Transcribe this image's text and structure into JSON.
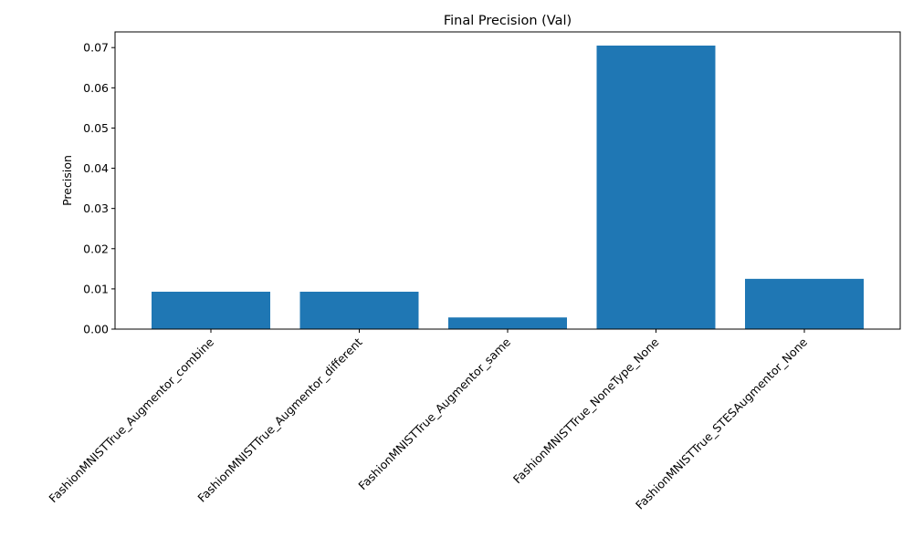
{
  "chart_data": {
    "type": "bar",
    "title": "Final Precision (Val)",
    "xlabel": "",
    "ylabel": "Precision",
    "categories": [
      "FashionMNISTTrue_Augmentor_combine",
      "FashionMNISTTrue_Augmentor_different",
      "FashionMNISTTrue_Augmentor_same",
      "FashionMNISTTrue_NoneType_None",
      "FashionMNISTTrue_STESAugmentor_None"
    ],
    "values": [
      0.0093,
      0.0093,
      0.0029,
      0.0705,
      0.0125
    ],
    "ylim": [
      0,
      0.0739
    ],
    "yticks": [
      0.0,
      0.01,
      0.02,
      0.03,
      0.04,
      0.05,
      0.06,
      0.07
    ],
    "ytick_labels": [
      "0.00",
      "0.01",
      "0.02",
      "0.03",
      "0.04",
      "0.05",
      "0.06",
      "0.07"
    ],
    "grid": false,
    "bar_color": "#1f77b4"
  }
}
